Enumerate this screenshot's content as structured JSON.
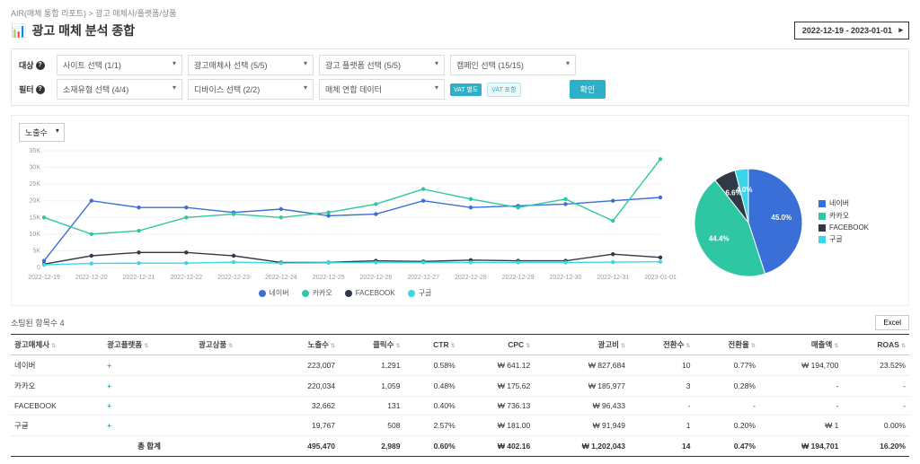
{
  "breadcrumb": "AIR(매체 통합 리포트) > 광고 매체사/플랫폼/상품",
  "pageTitle": "광고 매체 분석 종합",
  "dateRange": "2022-12-19 - 2023-01-01",
  "filters": {
    "label1": "대상",
    "label2": "필터",
    "site": "사이트 선택 (1/1)",
    "advertiser": "광고매체사 선택 (5/5)",
    "platform": "광고 플랫폼 선택 (5/5)",
    "campaign": "캠페인 선택 (15/15)",
    "creative": "소재유형 선택 (4/4)",
    "device": "디바이스 선택 (2/2)",
    "mediaCombined": "매체 연합 데이터",
    "vatOn": "VAT 별도",
    "vatOff": "VAT 포함",
    "confirm": "확인"
  },
  "metricDropdown": "노출수",
  "lineChart": {
    "background": "#ffffff",
    "gridColor": "#f0f0f0",
    "yMax": 35000,
    "yTicks": [
      "35K",
      "30K",
      "25K",
      "20K",
      "15K",
      "10K",
      "5K",
      "0"
    ],
    "xLabels": [
      "2022-12-19",
      "2022-12-20",
      "2022-12-21",
      "2022-12-22",
      "2022-12-23",
      "2022-12-24",
      "2022-12-25",
      "2022-12-26",
      "2022-12-27",
      "2022-12-28",
      "2022-12-29",
      "2022-12-30",
      "2022-12-31",
      "2023-01-01"
    ],
    "xWeekendColor": "#5a7fd6",
    "xHolidayColor": "#d93a3a",
    "weekendIdx": [
      5,
      6,
      12
    ],
    "holidayIdx": [
      13
    ],
    "series": [
      {
        "name": "네이버",
        "color": "#3a6fd8",
        "values": [
          2000,
          20000,
          18000,
          18000,
          16500,
          17500,
          15500,
          16000,
          20000,
          18000,
          18500,
          19000,
          20000,
          21000
        ]
      },
      {
        "name": "카카오",
        "color": "#2fc6a3",
        "values": [
          15000,
          10000,
          11000,
          15000,
          16000,
          15000,
          16500,
          19000,
          23500,
          20500,
          18000,
          20500,
          14000,
          32500
        ]
      },
      {
        "name": "FACEBOOK",
        "color": "#303a46",
        "values": [
          1000,
          3500,
          4500,
          4500,
          3500,
          1500,
          1500,
          2000,
          1800,
          2200,
          2000,
          2000,
          4000,
          3000
        ]
      },
      {
        "name": "구글",
        "color": "#3ad6e8",
        "values": [
          800,
          1200,
          1300,
          1300,
          1600,
          1300,
          1400,
          1500,
          1500,
          1500,
          1500,
          1500,
          1600,
          1700
        ]
      }
    ]
  },
  "pie": {
    "slices": [
      {
        "name": "네이버",
        "color": "#3a6fd8",
        "pct": 45.0,
        "label": "45.0%"
      },
      {
        "name": "카카오",
        "color": "#2fc6a3",
        "pct": 44.4,
        "label": "44.4%"
      },
      {
        "name": "FACEBOOK",
        "color": "#303a46",
        "pct": 6.6,
        "label": "6.6%"
      },
      {
        "name": "구글",
        "color": "#3ad6e8",
        "pct": 4.0,
        "label": "4.0%"
      }
    ]
  },
  "tableHeader": {
    "rowCount": "소팅된 항목수 4",
    "excel": "Excel"
  },
  "columns": [
    "광고매체사",
    "광고플랫폼",
    "광고상품",
    "노출수",
    "클릭수",
    "CTR",
    "CPC",
    "광고비",
    "전환수",
    "전환율",
    "매출액",
    "ROAS"
  ],
  "rows": [
    {
      "c0": "네이버",
      "c3": "223,007",
      "c4": "1,291",
      "c5": "0.58%",
      "c6": "₩ 641.12",
      "c7": "₩ 827,684",
      "c8": "10",
      "c9": "0.77%",
      "c10": "₩ 194,700",
      "c11": "23.52%"
    },
    {
      "c0": "카카오",
      "c3": "220,034",
      "c4": "1,059",
      "c5": "0.48%",
      "c6": "₩ 175.62",
      "c7": "₩ 185,977",
      "c8": "3",
      "c9": "0.28%",
      "c10": "-",
      "c11": "-"
    },
    {
      "c0": "FACEBOOK",
      "c3": "32,662",
      "c4": "131",
      "c5": "0.40%",
      "c6": "₩ 736.13",
      "c7": "₩ 96,433",
      "c8": "-",
      "c9": "-",
      "c10": "-",
      "c11": "-"
    },
    {
      "c0": "구글",
      "c3": "19,767",
      "c4": "508",
      "c5": "2.57%",
      "c6": "₩ 181.00",
      "c7": "₩ 91,949",
      "c8": "1",
      "c9": "0.20%",
      "c10": "₩ 1",
      "c11": "0.00%"
    }
  ],
  "totalLabel": "총 합계",
  "total": {
    "c3": "495,470",
    "c4": "2,989",
    "c5": "0.60%",
    "c6": "₩ 402.16",
    "c7": "₩ 1,202,043",
    "c8": "14",
    "c9": "0.47%",
    "c10": "₩ 194,701",
    "c11": "16.20%"
  }
}
